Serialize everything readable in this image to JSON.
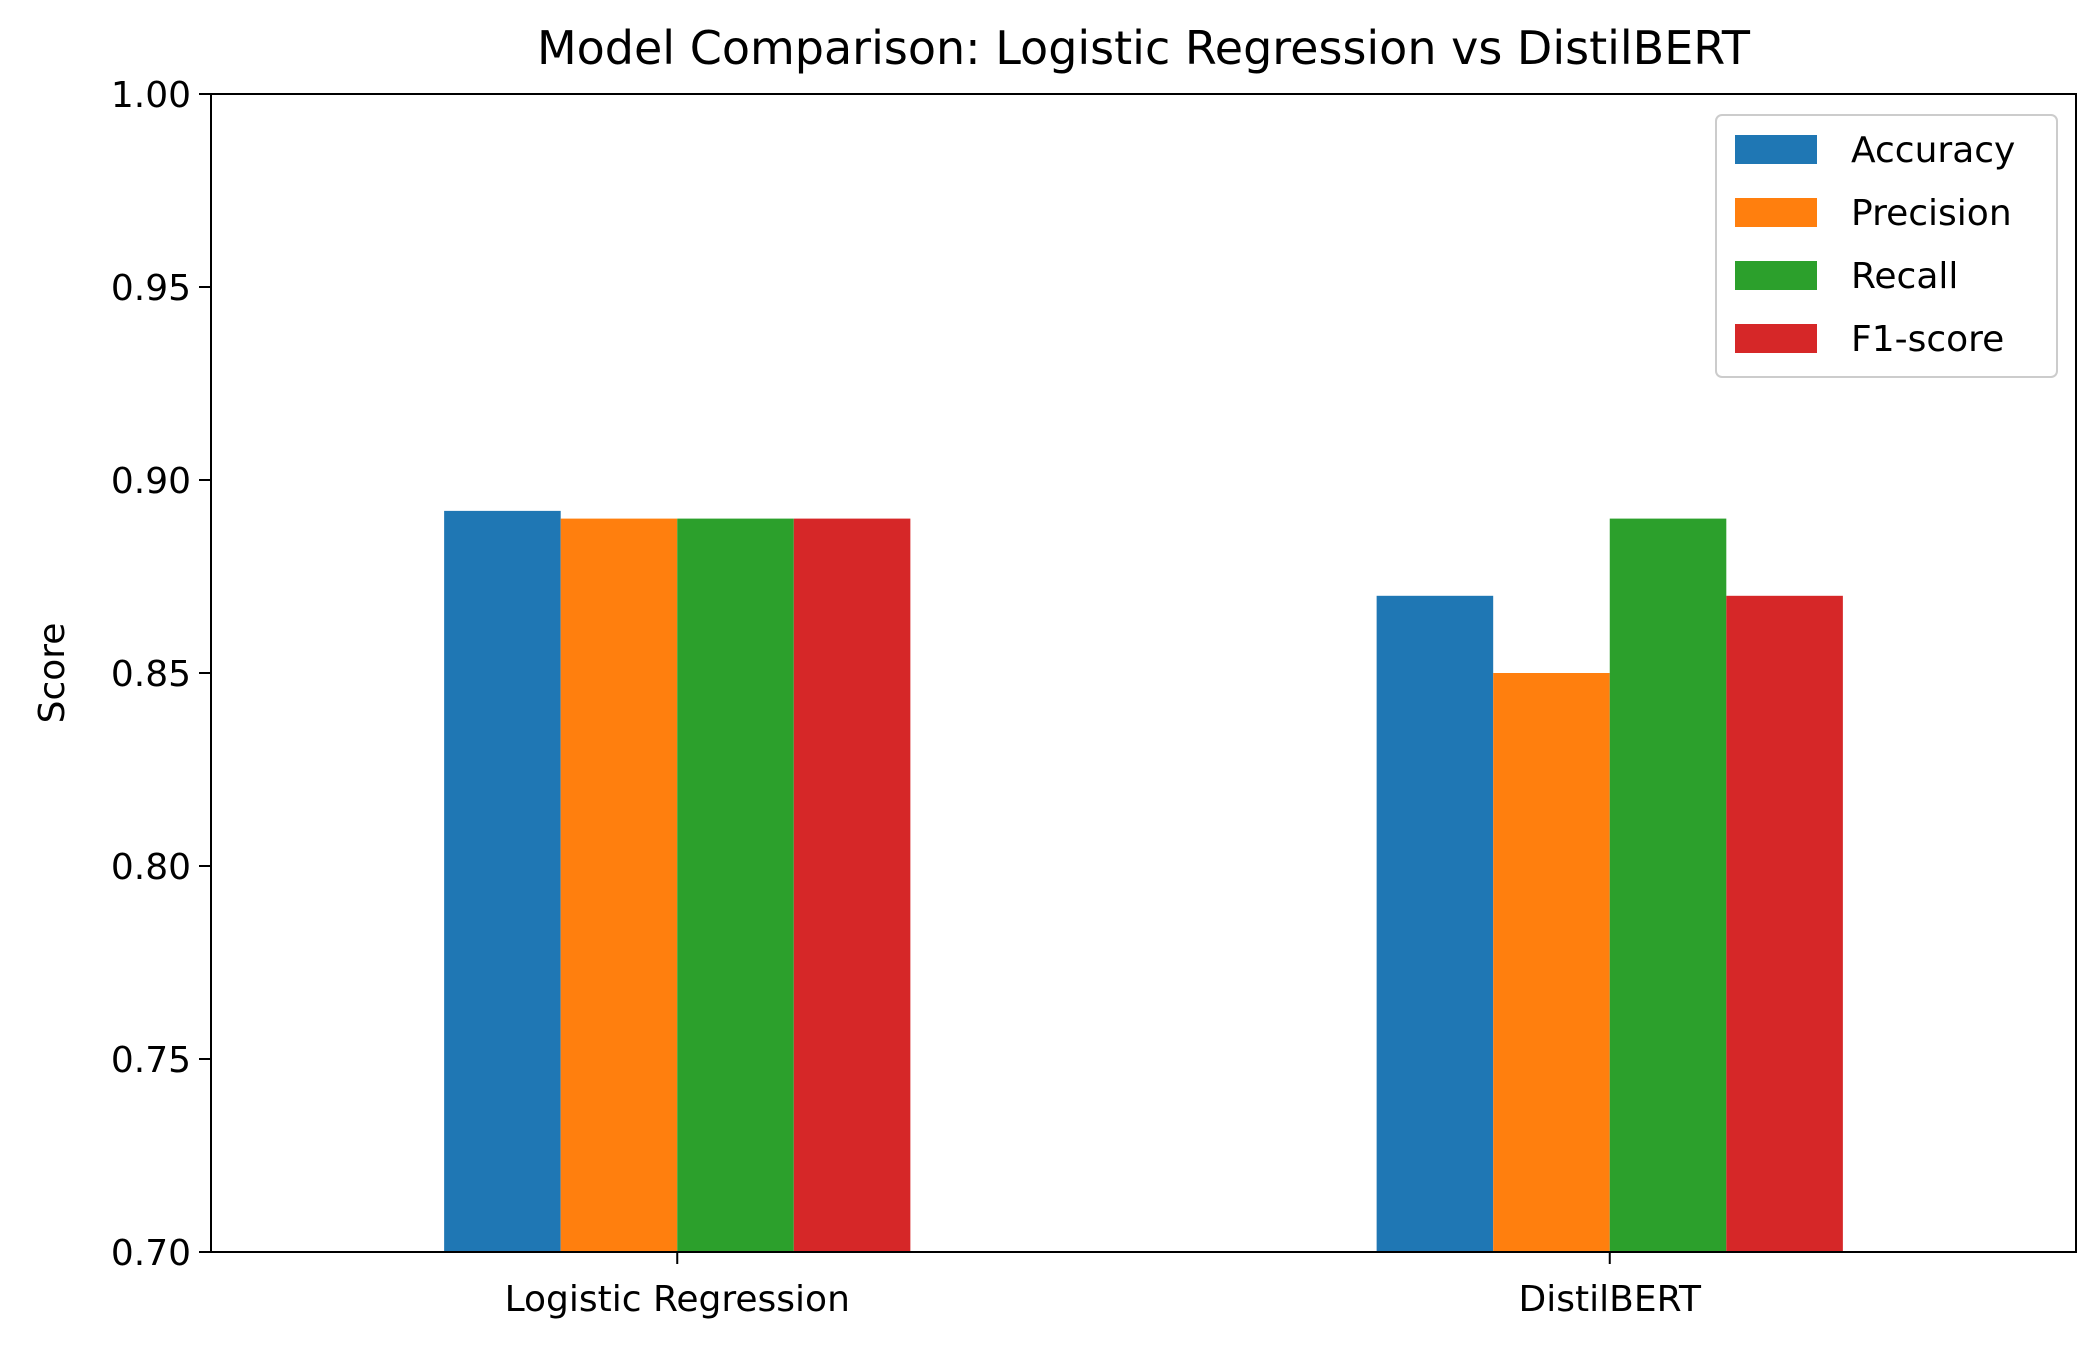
{
  "chart_data": {
    "type": "bar",
    "title": "Model Comparison: Logistic Regression vs DistilBERT",
    "xlabel": "",
    "ylabel": "Score",
    "ylim": [
      0.7,
      1.0
    ],
    "yticks": [
      "0.70",
      "0.75",
      "0.80",
      "0.85",
      "0.90",
      "0.95",
      "1.00"
    ],
    "categories": [
      "Logistic Regression",
      "DistilBERT"
    ],
    "series": [
      {
        "name": "Accuracy",
        "color": "#1f77b4",
        "values": [
          0.892,
          0.87
        ]
      },
      {
        "name": "Precision",
        "color": "#ff7f0e",
        "values": [
          0.89,
          0.85
        ]
      },
      {
        "name": "Recall",
        "color": "#2ca02c",
        "values": [
          0.89,
          0.89
        ]
      },
      {
        "name": "F1-score",
        "color": "#d62728",
        "values": [
          0.89,
          0.87
        ]
      }
    ],
    "legend_position": "top-right",
    "grid": false
  }
}
